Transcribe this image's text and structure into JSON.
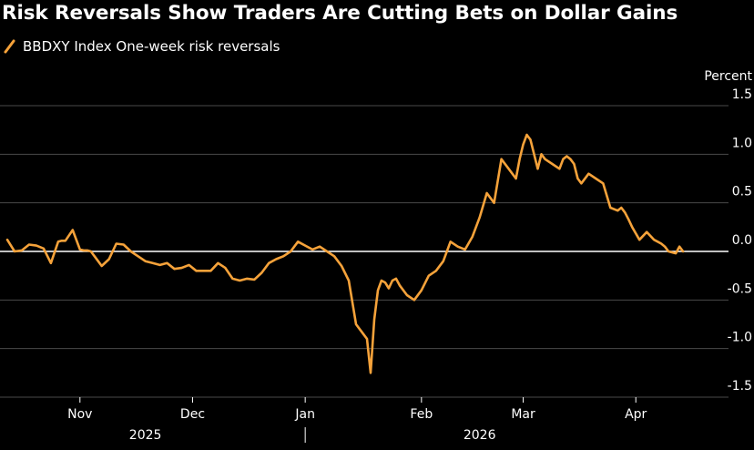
{
  "title": "Risk Reversals Show Traders Are Cutting Bets on Dollar Gains",
  "legend": {
    "label": "BBDXY Index One-week risk reversals",
    "color": "#f5a23a"
  },
  "colors": {
    "background": "#000000",
    "line": "#f5a23a",
    "grid": "#4a4a4a",
    "zero": "#ffffff",
    "text": "#ffffff"
  },
  "chart_data": {
    "type": "line",
    "title": "Risk Reversals Show Traders Are Cutting Bets on Dollar Gains",
    "ylabel": "Percent",
    "xlabel": "",
    "ylim": [
      -1.5,
      1.5
    ],
    "yticks": [
      1.5,
      1.0,
      0.5,
      0.0,
      -0.5,
      -1.0,
      -1.5
    ],
    "ytick_labels": [
      "1.5",
      "1.0",
      "0.5",
      "0.0",
      "-0.5",
      "-1.0",
      "-1.5"
    ],
    "xlim": [
      0,
      195
    ],
    "xticks": [
      {
        "x": 20,
        "label": "Nov"
      },
      {
        "x": 51,
        "label": "Dec"
      },
      {
        "x": 82,
        "label": "Jan"
      },
      {
        "x": 114,
        "label": "Feb"
      },
      {
        "x": 142,
        "label": "Mar"
      },
      {
        "x": 173,
        "label": "Apr"
      }
    ],
    "year_labels": [
      {
        "x": 38,
        "label": "2025"
      },
      {
        "x": 130,
        "label": "2026"
      }
    ],
    "year_divider_x": 82,
    "series": [
      {
        "name": "BBDXY Index One-week risk reversals",
        "x": [
          0,
          2,
          4,
          6,
          8,
          10,
          12,
          14,
          15,
          16,
          18,
          20,
          21,
          22,
          23,
          24,
          26,
          28,
          30,
          32,
          34,
          36,
          38,
          40,
          42,
          44,
          46,
          48,
          50,
          52,
          54,
          56,
          58,
          60,
          62,
          64,
          66,
          68,
          70,
          72,
          74,
          76,
          78,
          80,
          82,
          84,
          86,
          88,
          90,
          92,
          94,
          96,
          98,
          99,
          100,
          101,
          102,
          103,
          104,
          105,
          106,
          107,
          108,
          110,
          112,
          114,
          116,
          118,
          120,
          122,
          124,
          126,
          128,
          130,
          132,
          134,
          136,
          138,
          140,
          141,
          142,
          143,
          144,
          145,
          146,
          147,
          148,
          150,
          152,
          153,
          154,
          155,
          156,
          157,
          158,
          160,
          162,
          164,
          166,
          168,
          169,
          170,
          171,
          172,
          174,
          176,
          178,
          179,
          180,
          181,
          182,
          184,
          185,
          186
        ],
        "values": [
          0.12,
          0.0,
          0.01,
          0.07,
          0.06,
          0.03,
          -0.12,
          0.1,
          0.11,
          0.11,
          0.22,
          0.02,
          0.01,
          0.01,
          0.0,
          -0.05,
          -0.15,
          -0.08,
          0.08,
          0.07,
          0.0,
          -0.05,
          -0.1,
          -0.12,
          -0.14,
          -0.12,
          -0.18,
          -0.17,
          -0.14,
          -0.2,
          -0.2,
          -0.2,
          -0.12,
          -0.17,
          -0.28,
          -0.3,
          -0.28,
          -0.29,
          -0.22,
          -0.12,
          -0.08,
          -0.05,
          0.0,
          0.1,
          0.06,
          0.02,
          0.05,
          0.0,
          -0.05,
          -0.15,
          -0.3,
          -0.75,
          -0.85,
          -0.9,
          -1.25,
          -0.7,
          -0.4,
          -0.3,
          -0.32,
          -0.38,
          -0.3,
          -0.28,
          -0.35,
          -0.45,
          -0.5,
          -0.4,
          -0.25,
          -0.2,
          -0.1,
          0.1,
          0.05,
          0.02,
          0.15,
          0.35,
          0.6,
          0.5,
          0.95,
          0.85,
          0.75,
          0.95,
          1.1,
          1.2,
          1.15,
          1.0,
          0.85,
          1.0,
          0.95,
          0.9,
          0.85,
          0.95,
          0.98,
          0.95,
          0.9,
          0.75,
          0.7,
          0.8,
          0.75,
          0.7,
          0.45,
          0.42,
          0.45,
          0.4,
          0.33,
          0.25,
          0.12,
          0.2,
          0.12,
          0.1,
          0.08,
          0.05,
          0.0,
          -0.02,
          0.05,
          0.0
        ]
      }
    ]
  }
}
